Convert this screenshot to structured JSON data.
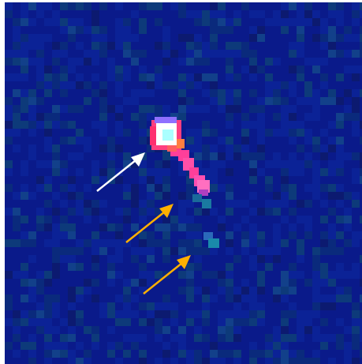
{
  "image": {
    "kind": "false-color astronomical image (noise field)",
    "background_colors": [
      "#0a1a8a",
      "#0b2a9a",
      "#0d3a7a"
    ],
    "object_colors": {
      "core": "#cfffff",
      "core_ring": "#ff4fa0",
      "tail": "#ff3f9a",
      "faint_knot": "#1a8aa0"
    }
  },
  "annotations": [
    {
      "name": "white-arrow",
      "color": "#ffffff"
    },
    {
      "name": "orange-arrow-upper",
      "color": "#ffb000"
    },
    {
      "name": "orange-arrow-lower",
      "color": "#ffb000"
    }
  ]
}
